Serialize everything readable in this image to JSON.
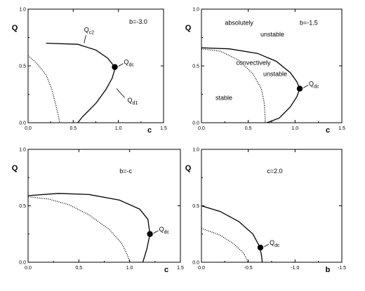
{
  "chart_data": [
    {
      "type": "line",
      "xlabel": "c",
      "ylabel": "Q",
      "xlim": [
        0,
        1.5
      ],
      "ylim": [
        0,
        1.0
      ],
      "x_ticks": [
        "0.0",
        "0.5",
        "1.0",
        "1.5"
      ],
      "y_ticks": [
        "0.0",
        "0.5",
        "1.0"
      ],
      "series": [
        {
          "style": "solid",
          "points": [
            [
              0.2,
              0.7
            ],
            [
              0.55,
              0.69
            ],
            [
              0.75,
              0.64
            ],
            [
              0.88,
              0.57
            ],
            [
              0.95,
              0.5
            ],
            [
              0.96,
              0.47
            ],
            [
              0.93,
              0.39
            ],
            [
              0.86,
              0.29
            ],
            [
              0.75,
              0.17
            ],
            [
              0.6,
              0.05
            ],
            [
              0.55,
              0.0
            ]
          ]
        },
        {
          "style": "dotted",
          "points": [
            [
              0.0,
              0.59
            ],
            [
              0.1,
              0.52
            ],
            [
              0.2,
              0.42
            ],
            [
              0.26,
              0.3
            ],
            [
              0.3,
              0.18
            ],
            [
              0.33,
              0.08
            ],
            [
              0.35,
              0.0
            ]
          ]
        }
      ],
      "points": [
        {
          "x": 0.96,
          "y": 0.49,
          "label": "Q",
          "sub": "dc"
        }
      ],
      "annotations": [
        {
          "text": "b=-3.0",
          "x": 1.12,
          "y": 0.87
        },
        {
          "text": "Q",
          "sub": "c2",
          "x": 0.62,
          "y": 0.8
        },
        {
          "text": "Q",
          "sub": "d1",
          "x": 1.1,
          "y": 0.18
        }
      ]
    },
    {
      "type": "line",
      "xlabel": "c",
      "ylabel": "Q",
      "xlim": [
        0,
        1.5
      ],
      "ylim": [
        0,
        1.0
      ],
      "x_ticks": [
        "0.0",
        "0.5",
        "1.0",
        "1.5"
      ],
      "y_ticks": [
        "0.0",
        "0.5",
        "1.0"
      ],
      "series": [
        {
          "style": "solid",
          "points": [
            [
              0.0,
              0.66
            ],
            [
              0.3,
              0.65
            ],
            [
              0.6,
              0.61
            ],
            [
              0.8,
              0.54
            ],
            [
              0.95,
              0.44
            ],
            [
              1.02,
              0.36
            ],
            [
              1.05,
              0.3
            ],
            [
              1.02,
              0.23
            ],
            [
              0.95,
              0.14
            ],
            [
              0.83,
              0.04
            ],
            [
              0.7,
              0.0
            ]
          ]
        },
        {
          "style": "dotted",
          "points": [
            [
              0.0,
              0.65
            ],
            [
              0.2,
              0.63
            ],
            [
              0.4,
              0.55
            ],
            [
              0.55,
              0.43
            ],
            [
              0.64,
              0.3
            ],
            [
              0.67,
              0.18
            ],
            [
              0.68,
              0.05
            ],
            [
              0.68,
              0.0
            ]
          ]
        }
      ],
      "points": [
        {
          "x": 1.05,
          "y": 0.3,
          "label": "Q",
          "sub": "dc"
        }
      ],
      "annotations": [
        {
          "text": "absolutely",
          "x": 0.25,
          "y": 0.86
        },
        {
          "text": "unstable",
          "x": 0.63,
          "y": 0.76
        },
        {
          "text": "b=-1.5",
          "x": 1.05,
          "y": 0.86
        },
        {
          "text": "convectively",
          "x": 0.37,
          "y": 0.51
        },
        {
          "text": "unstable",
          "x": 0.66,
          "y": 0.41
        },
        {
          "text": "stable",
          "x": 0.15,
          "y": 0.2
        }
      ]
    },
    {
      "type": "line",
      "xlabel": "c",
      "ylabel": "Q",
      "xlim": [
        0,
        1.5
      ],
      "ylim": [
        0,
        1.0
      ],
      "x_ticks": [
        "0.0",
        "0.5",
        "1.0",
        "1.5"
      ],
      "y_ticks": [
        "0.0",
        "0.5",
        "1.0"
      ],
      "series": [
        {
          "style": "solid",
          "points": [
            [
              0.0,
              0.59
            ],
            [
              0.3,
              0.61
            ],
            [
              0.6,
              0.6
            ],
            [
              0.9,
              0.55
            ],
            [
              1.1,
              0.47
            ],
            [
              1.18,
              0.38
            ],
            [
              1.2,
              0.25
            ],
            [
              1.17,
              0.12
            ],
            [
              1.13,
              0.0
            ]
          ]
        },
        {
          "style": "dotted",
          "points": [
            [
              0.0,
              0.58
            ],
            [
              0.2,
              0.56
            ],
            [
              0.4,
              0.51
            ],
            [
              0.6,
              0.42
            ],
            [
              0.8,
              0.29
            ],
            [
              0.92,
              0.17
            ],
            [
              0.98,
              0.06
            ],
            [
              1.0,
              0.0
            ]
          ]
        }
      ],
      "points": [
        {
          "x": 1.2,
          "y": 0.25,
          "label": "Q",
          "sub": "dc"
        }
      ],
      "annotations": [
        {
          "text": "b=-c",
          "x": 0.9,
          "y": 0.79
        }
      ]
    },
    {
      "type": "line",
      "xlabel": "b",
      "ylabel": "Q",
      "xlim": [
        0,
        -1.5
      ],
      "ylim": [
        0,
        1.0
      ],
      "x_ticks": [
        "0.0",
        "-0.5",
        "-1.0",
        "-1.5"
      ],
      "y_ticks": [
        "0.0",
        "0.5",
        "1.0"
      ],
      "series": [
        {
          "style": "solid",
          "points": [
            [
              0.0,
              0.5
            ],
            [
              -0.2,
              0.45
            ],
            [
              -0.4,
              0.36
            ],
            [
              -0.55,
              0.25
            ],
            [
              -0.62,
              0.14
            ],
            [
              -0.64,
              0.07
            ],
            [
              -0.65,
              0.0
            ]
          ]
        },
        {
          "style": "dotted",
          "points": [
            [
              0.0,
              0.3
            ],
            [
              -0.2,
              0.24
            ],
            [
              -0.35,
              0.16
            ],
            [
              -0.45,
              0.08
            ],
            [
              -0.5,
              0.0
            ]
          ]
        }
      ],
      "points": [
        {
          "x": -0.63,
          "y": 0.13,
          "label": "Q",
          "sub": "dc"
        }
      ],
      "annotations": [
        {
          "text": "c=2.0",
          "x": -0.7,
          "y": 0.79
        }
      ]
    }
  ]
}
